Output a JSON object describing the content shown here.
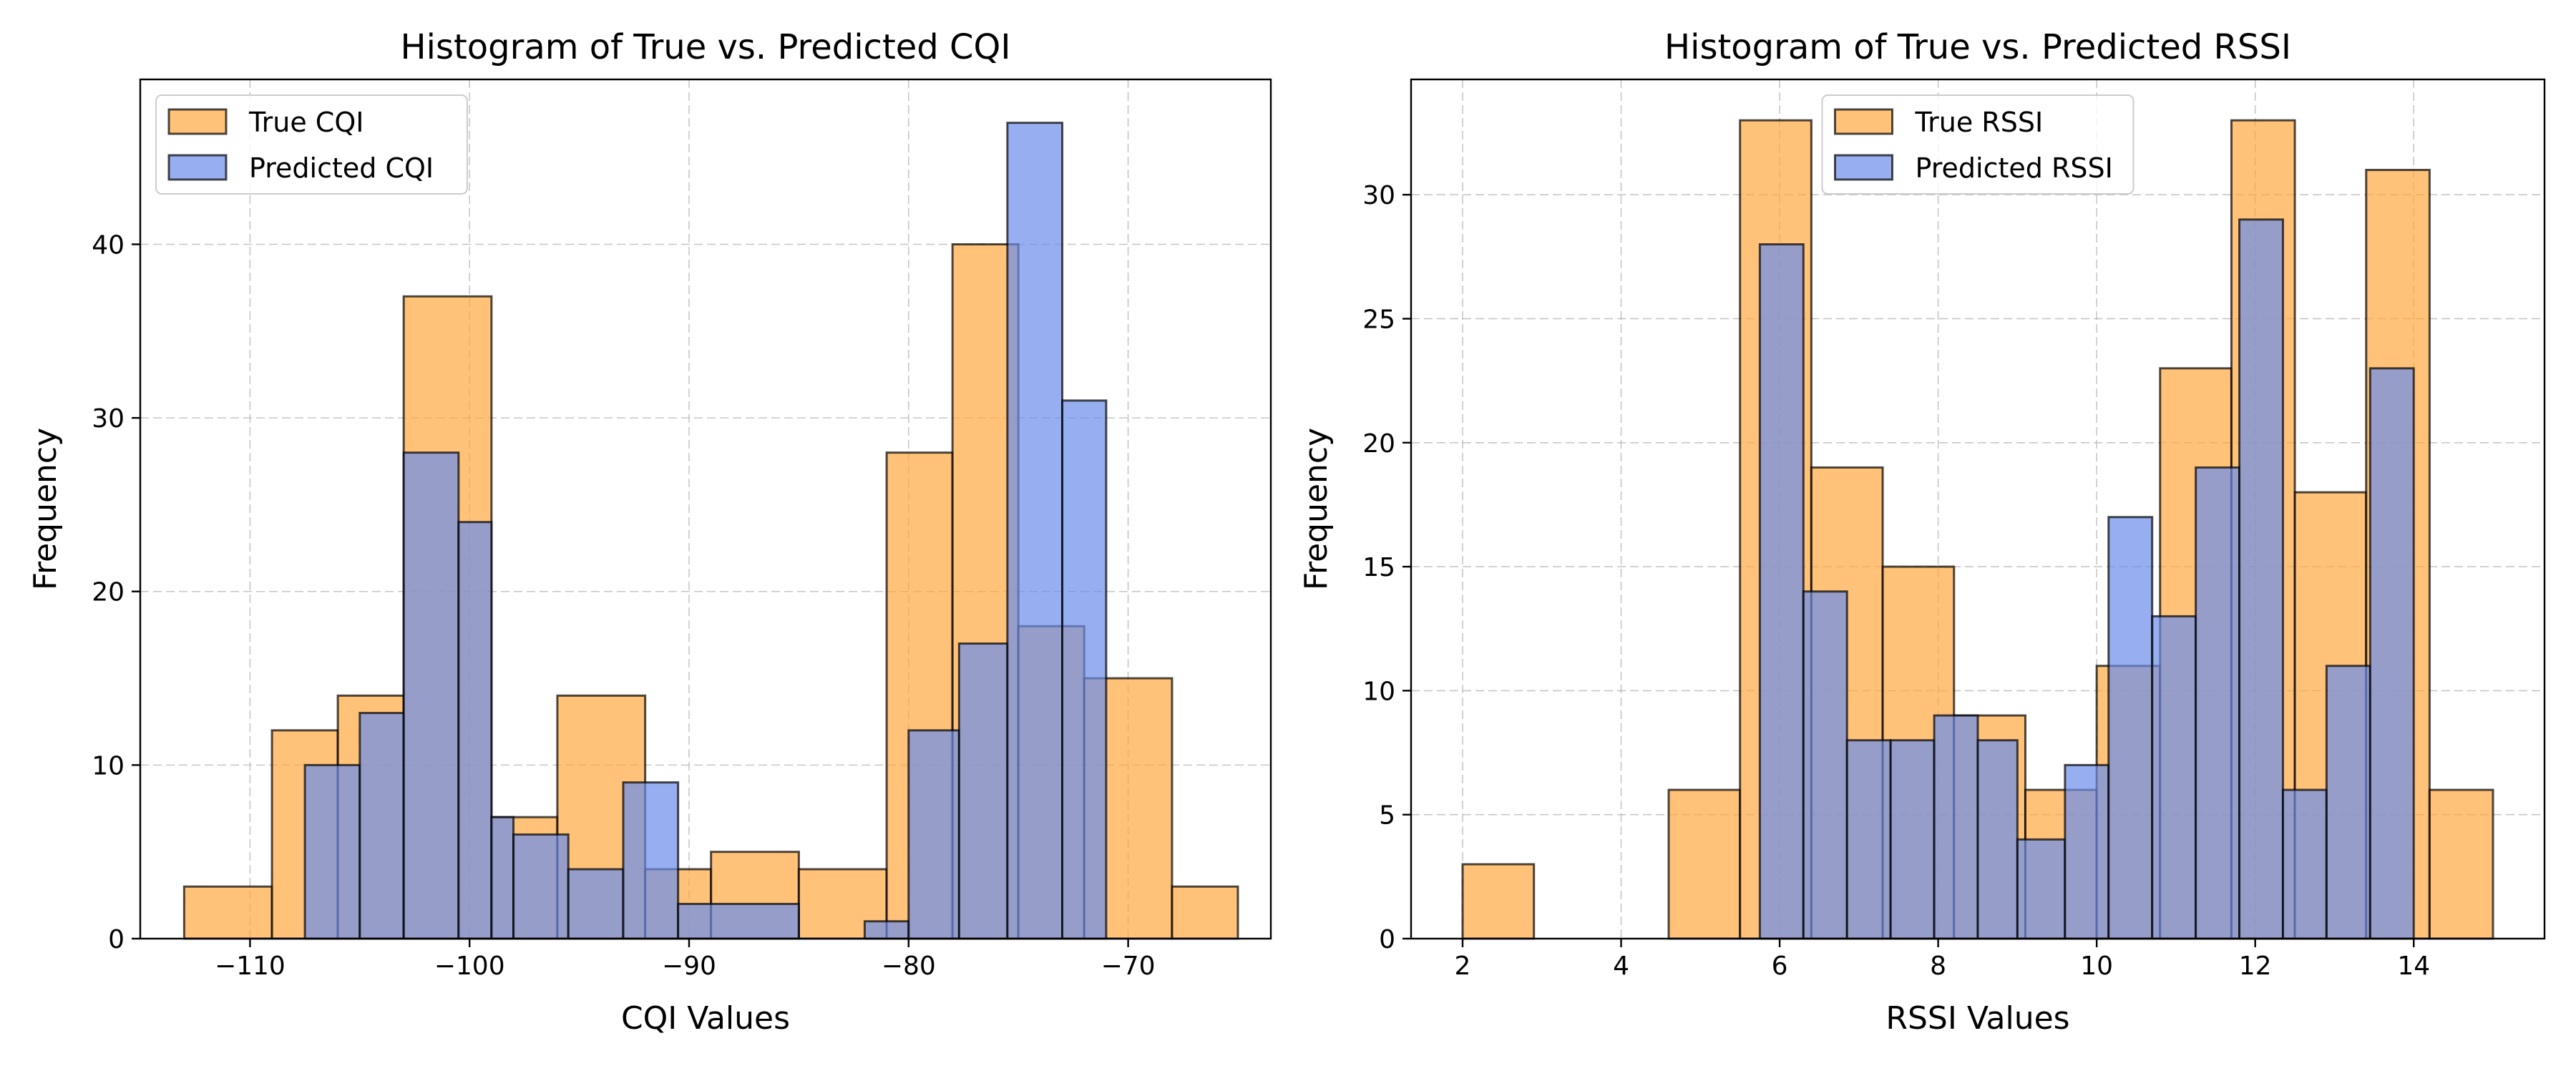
{
  "chart_data": [
    {
      "type": "bar",
      "title": "Histogram of True vs. Predicted CQI",
      "xlabel": "CQI Values",
      "ylabel": "Frequency",
      "xlim": [
        -115,
        -63.5
      ],
      "ylim": [
        0,
        49.5
      ],
      "xticks": [
        -110,
        -100,
        -90,
        -80,
        -70
      ],
      "xtick_labels": [
        "−110",
        "−100",
        "−90",
        "−80",
        "−70"
      ],
      "yticks": [
        0,
        10,
        20,
        30,
        40
      ],
      "yticks_labels": [
        "0",
        "10",
        "20",
        "30",
        "40"
      ],
      "grid": true,
      "legend_position": "upper-left",
      "series": [
        {
          "name": "True CQI",
          "color": "#FFA83E",
          "edges": [
            -113,
            -109,
            -106,
            -103,
            -99,
            -96,
            -92,
            -89,
            -85,
            -81,
            -78,
            -75,
            -72,
            -68,
            -65
          ],
          "values": [
            3,
            12,
            14,
            37,
            7,
            14,
            4,
            5,
            4,
            28,
            40,
            18,
            15,
            3
          ]
        },
        {
          "name": "Predicted CQI",
          "color": "#6B8DEB",
          "edges": [
            -107.5,
            -105,
            -103,
            -100.5,
            -99,
            -98,
            -95.5,
            -93,
            -90.5,
            -85,
            -82,
            -80,
            -77.7,
            -75.5,
            -73,
            -71
          ],
          "values": [
            10,
            13,
            28,
            24,
            7,
            6,
            4,
            9,
            2,
            0,
            1,
            12,
            17,
            47,
            31
          ]
        }
      ]
    },
    {
      "type": "bar",
      "title": "Histogram of True vs. Predicted RSSI",
      "xlabel": "RSSI Values",
      "ylabel": "Frequency",
      "xlim": [
        1.35,
        15.65
      ],
      "ylim": [
        0,
        34.65
      ],
      "xticks": [
        2,
        4,
        6,
        8,
        10,
        12,
        14
      ],
      "xtick_labels": [
        "2",
        "4",
        "6",
        "8",
        "10",
        "12",
        "14"
      ],
      "yticks": [
        0,
        5,
        10,
        15,
        20,
        25,
        30
      ],
      "yticks_labels": [
        "0",
        "5",
        "10",
        "15",
        "20",
        "25",
        "30"
      ],
      "grid": true,
      "legend_position": "upper-center",
      "series": [
        {
          "name": "True RSSI",
          "color": "#FFA83E",
          "edges": [
            2,
            2.9,
            3.7,
            4.6,
            5.5,
            6.4,
            7.3,
            8.2,
            9.1,
            10,
            10.8,
            11.7,
            12.5,
            13.4,
            14.2,
            15
          ],
          "values": [
            3,
            0,
            0,
            6,
            33,
            19,
            15,
            9,
            6,
            11,
            23,
            33,
            18,
            31,
            6
          ]
        },
        {
          "name": "Predicted RSSI",
          "color": "#6B8DEB",
          "edges": [
            5.75,
            6.3,
            6.85,
            7.4,
            7.95,
            8.5,
            9.0,
            9.6,
            10.15,
            10.7,
            11.25,
            11.8,
            12.35,
            12.9,
            13.45,
            14.0
          ],
          "values": [
            28,
            14,
            8,
            8,
            9,
            8,
            4,
            7,
            17,
            13,
            19,
            29,
            6,
            11,
            23
          ]
        }
      ]
    }
  ]
}
